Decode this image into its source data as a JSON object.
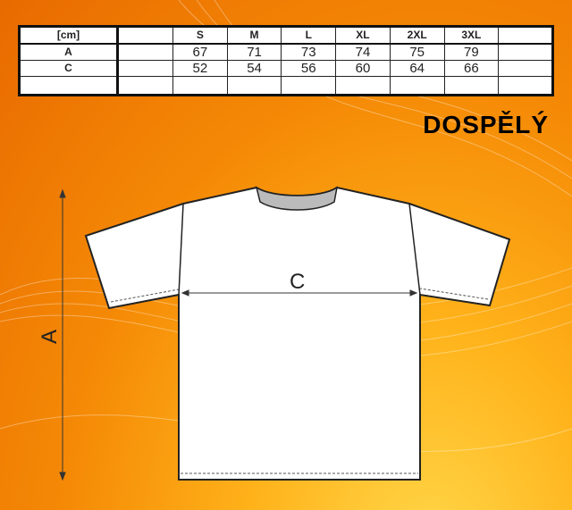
{
  "table": {
    "header": [
      "[cm]",
      "",
      "S",
      "M",
      "L",
      "XL",
      "2XL",
      "3XL",
      ""
    ],
    "rows": [
      [
        "A",
        "",
        "67",
        "71",
        "73",
        "74",
        "75",
        "79",
        ""
      ],
      [
        "C",
        "",
        "52",
        "54",
        "56",
        "60",
        "64",
        "66",
        ""
      ],
      [
        "",
        "",
        "",
        "",
        "",
        "",
        "",
        "",
        ""
      ]
    ]
  },
  "title": "DOSPĚLÝ",
  "diagram": {
    "label_a": "A",
    "label_c": "C"
  },
  "colors": {
    "background": "#f58a06",
    "highlight": "#ffd84a"
  }
}
